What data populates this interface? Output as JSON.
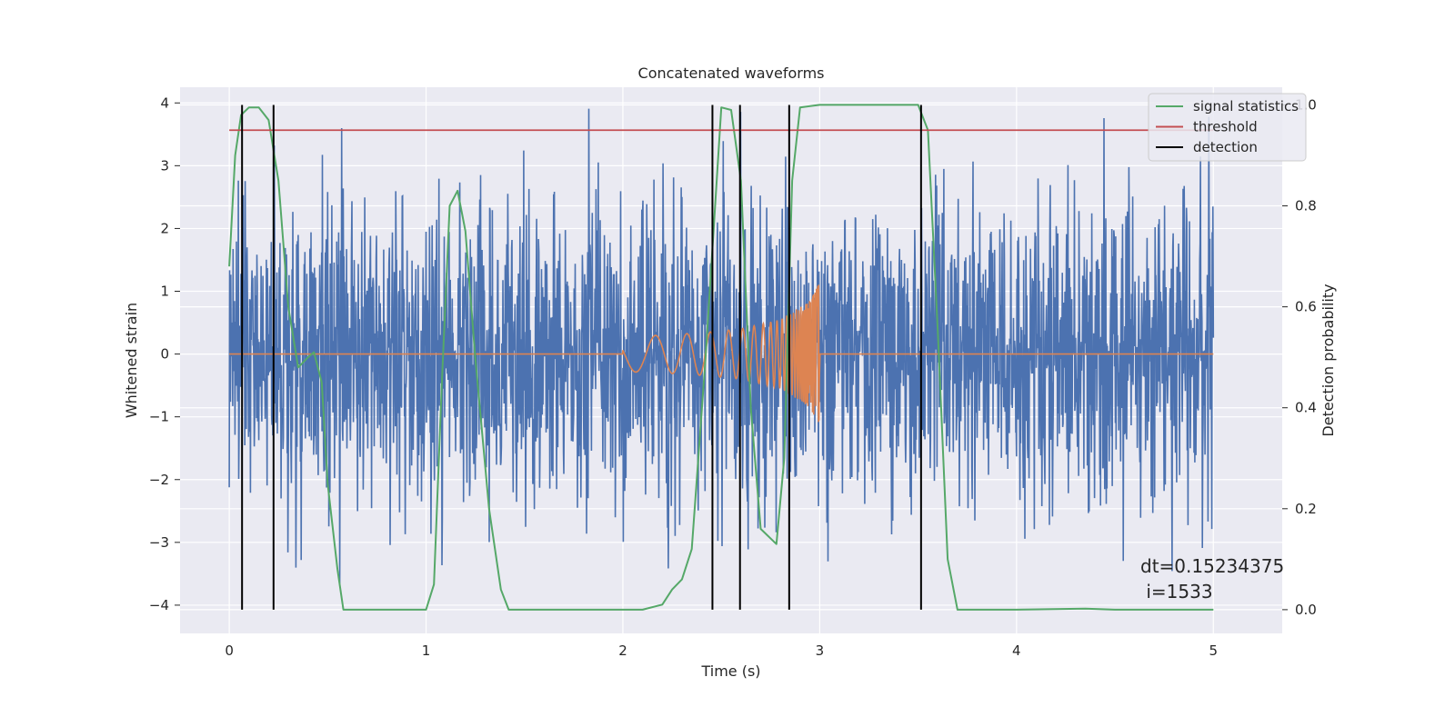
{
  "chart_data": {
    "type": "line",
    "title": "Concatenated waveforms",
    "xlabel": "Time (s)",
    "ylabel": "Whitened strain",
    "y2label": "Detection probability",
    "xlim": [
      -0.25,
      5.35
    ],
    "ylim": [
      -4.45,
      4.25
    ],
    "y2lim": [
      -0.047,
      1.035
    ],
    "x_ticks": [
      0,
      1,
      2,
      3,
      4,
      5
    ],
    "y_ticks": [
      -4,
      -3,
      -2,
      -1,
      0,
      1,
      2,
      3,
      4
    ],
    "y2_ticks": [
      0.0,
      0.2,
      0.4,
      0.6,
      0.8,
      1.0
    ],
    "y_tick_labels": [
      "−4",
      "−3",
      "−2",
      "−1",
      "0",
      "1",
      "2",
      "3",
      "4"
    ],
    "y2_tick_labels": [
      "0.0",
      "0.2",
      "0.4",
      "0.6",
      "0.8",
      "1.0"
    ],
    "grid": true,
    "legend_position": "top-right",
    "colors": {
      "strain": "#4c72b0",
      "template": "#dd8452",
      "signal_statistics": "#55a868",
      "threshold": "#c44e52",
      "detection": "#000000",
      "axes_bg": "#eaeaf2"
    },
    "series": [
      {
        "name": "",
        "description_axis": "left",
        "x_range": [
          0,
          5
        ],
        "approx_core_amplitude": 0.8,
        "approx_peak_range": [
          -4.05,
          4.0
        ]
      },
      {
        "name": "",
        "axis": "left",
        "x": [
          0,
          2.0,
          2.2,
          2.4,
          2.6,
          2.8,
          2.95,
          3.0,
          3.0,
          5.0
        ],
        "envelope": [
          0.0,
          0.28,
          0.3,
          0.34,
          0.4,
          0.55,
          0.85,
          1.15,
          0.0,
          0.0
        ]
      },
      {
        "name": "signal statistics",
        "axis": "right",
        "x": [
          0.0,
          0.03,
          0.06,
          0.1,
          0.15,
          0.2,
          0.25,
          0.3,
          0.35,
          0.4,
          0.43,
          0.47,
          0.5,
          0.55,
          0.58,
          0.62,
          1.0,
          1.04,
          1.08,
          1.12,
          1.16,
          1.2,
          1.25,
          1.32,
          1.38,
          1.42,
          1.47,
          2.1,
          2.2,
          2.25,
          2.3,
          2.35,
          2.42,
          2.5,
          2.55,
          2.6,
          2.65,
          2.7,
          2.78,
          2.82,
          2.86,
          2.9,
          3.0,
          3.5,
          3.55,
          3.6,
          3.65,
          3.7,
          4.0,
          4.35,
          4.5,
          5.0
        ],
        "y": [
          0.68,
          0.9,
          0.98,
          0.995,
          0.995,
          0.97,
          0.85,
          0.6,
          0.48,
          0.5,
          0.51,
          0.45,
          0.25,
          0.08,
          0.0,
          0.0,
          0.0,
          0.05,
          0.45,
          0.8,
          0.83,
          0.75,
          0.5,
          0.2,
          0.04,
          0.0,
          0.0,
          0.0,
          0.01,
          0.04,
          0.06,
          0.12,
          0.5,
          0.995,
          0.99,
          0.85,
          0.4,
          0.16,
          0.13,
          0.3,
          0.85,
          0.995,
          1.0,
          1.0,
          0.95,
          0.55,
          0.1,
          0.0,
          0.0,
          0.002,
          0.0,
          0.0
        ]
      },
      {
        "name": "threshold",
        "axis": "right",
        "x": [
          0,
          5
        ],
        "y": [
          0.95,
          0.95
        ]
      }
    ],
    "detections": [
      0.065,
      0.225,
      2.455,
      2.595,
      2.845,
      3.515
    ],
    "legend": [
      "signal statistics",
      "threshold",
      "detection"
    ],
    "annotation": {
      "line1": "dt=0.15234375",
      "line2": " i=1533"
    }
  }
}
